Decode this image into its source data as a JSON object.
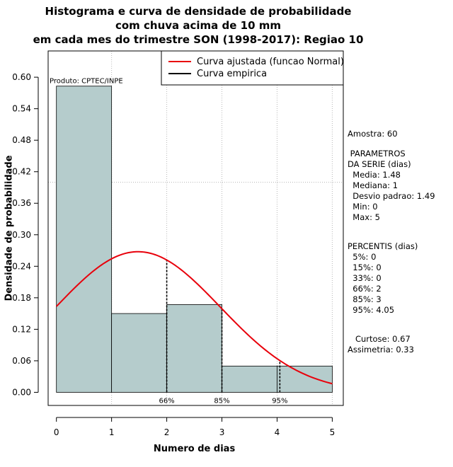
{
  "chart_data": {
    "type": "histogram",
    "title_lines": [
      "Histograma e curva de densidade de probabilidade",
      "com chuva acima de 10 mm",
      "em cada mes do trimestre SON (1998-2017): Regiao 10"
    ],
    "xlabel": "Numero de dias",
    "ylabel": "Densidade de probabilidade",
    "xlim": [
      -0.15,
      5.2
    ],
    "ylim": [
      -0.025,
      0.65
    ],
    "xticks": [
      "0",
      "1",
      "2",
      "3",
      "4",
      "5"
    ],
    "yticks": [
      "0.00",
      "0.06",
      "0.12",
      "0.18",
      "0.24",
      "0.30",
      "0.36",
      "0.42",
      "0.48",
      "0.54",
      "0.60"
    ],
    "grid_x": [
      1,
      2,
      3,
      4,
      5
    ],
    "grid_y": [
      0.4
    ],
    "bins": [
      {
        "from": 0,
        "to": 1,
        "density": 0.583
      },
      {
        "from": 1,
        "to": 2,
        "density": 0.15
      },
      {
        "from": 2,
        "to": 3,
        "density": 0.167
      },
      {
        "from": 3,
        "to": 4,
        "density": 0.05
      },
      {
        "from": 4,
        "to": 5,
        "density": 0.05
      }
    ],
    "bar_color": "#b5cccc",
    "normal_curve": {
      "name": "Curva ajustada (funcao Normal)",
      "mean": 1.48,
      "sd": 1.49,
      "x_from": 0,
      "x_to": 5,
      "color": "#e8000b"
    },
    "empirical_curve": {
      "name": "Curva empirica",
      "color": "#000000"
    },
    "percentile_markers": [
      {
        "label": "66%",
        "x": 2
      },
      {
        "label": "85%",
        "x": 3
      },
      {
        "label": "95%",
        "x": 4.05
      }
    ],
    "legend_position": "top-right",
    "product_label": "Produto: CPTEC/INPE"
  },
  "stats_panel": {
    "amostra": "Amostra: 60",
    "params_lines": [
      " PARAMETROS",
      "DA SERIE (dias)",
      "  Media: 1.48",
      "  Mediana: 1",
      "  Desvio padrao: 1.49",
      "  Min: 0",
      "  Max: 5"
    ],
    "percentis_lines": [
      "PERCENTIS (dias)",
      "  5%: 0",
      "  15%: 0",
      "  33%: 0",
      "  66%: 2",
      "  85%: 3",
      "  95%: 4.05"
    ],
    "shape_lines": [
      "   Curtose: 0.67",
      "Assimetria: 0.33"
    ]
  }
}
